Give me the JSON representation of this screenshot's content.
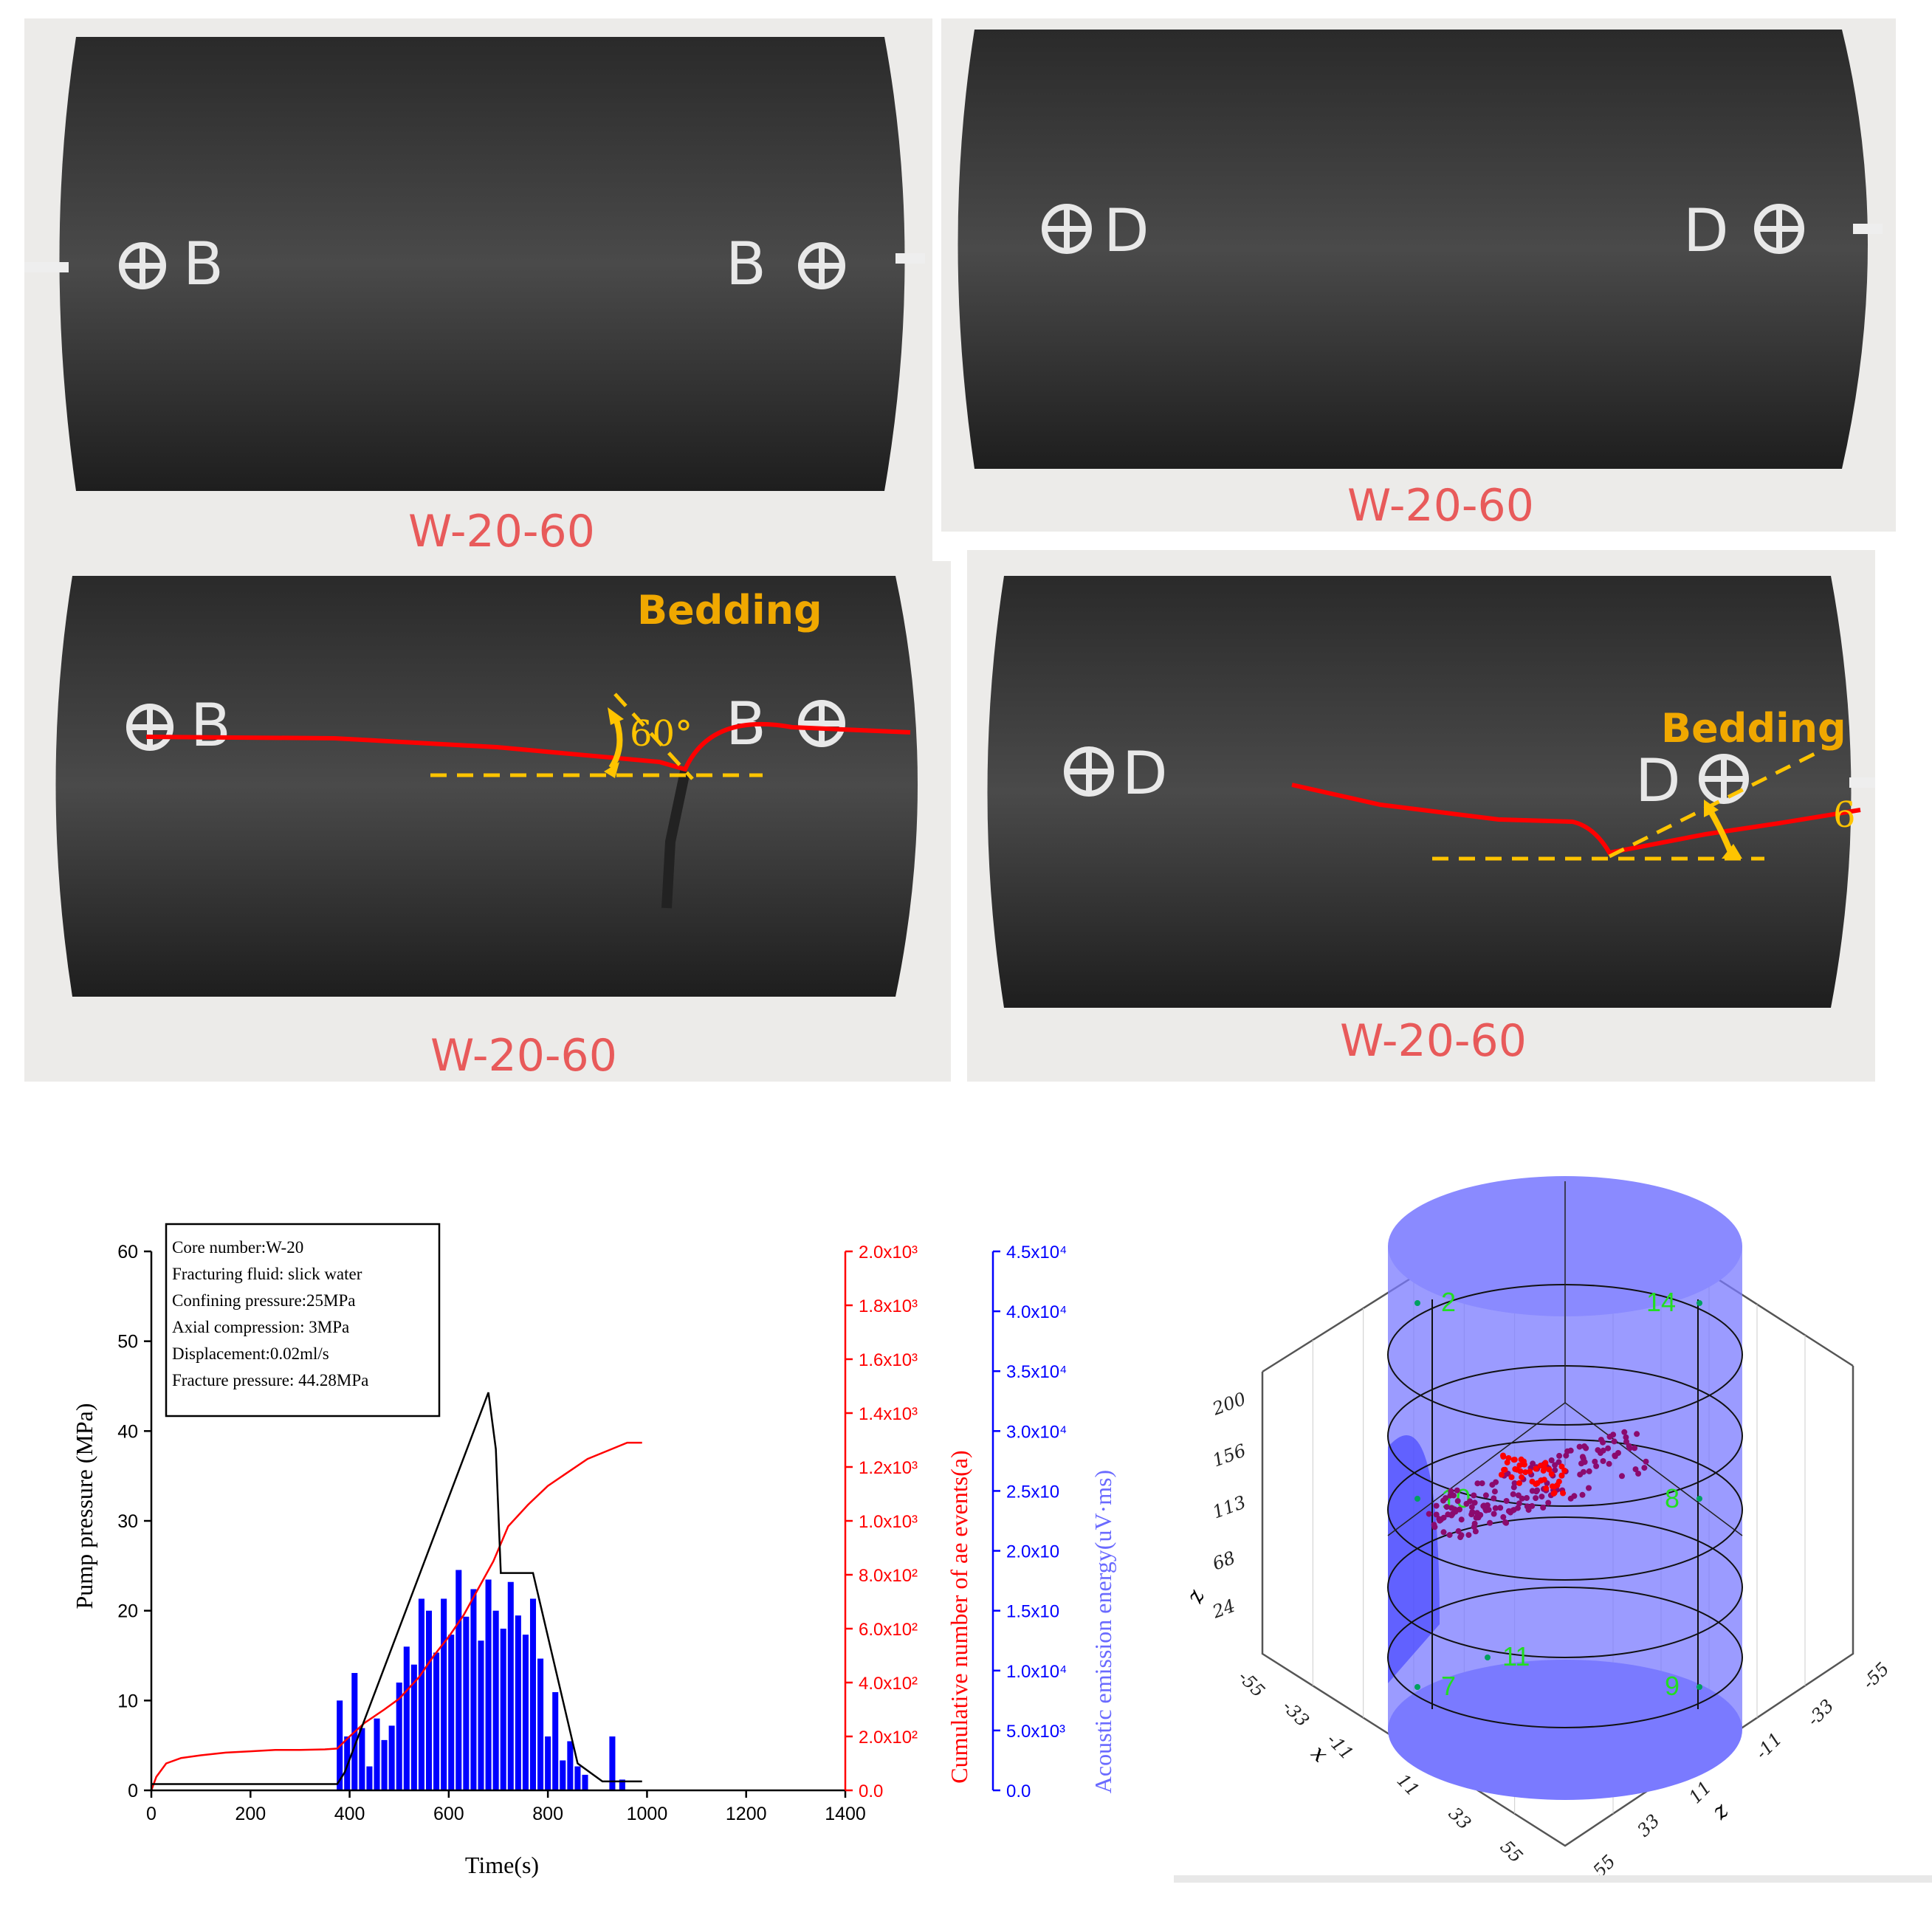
{
  "photos": {
    "sample_label": "W-20-60",
    "mark_b": "B",
    "mark_d": "D",
    "bedding_label": "Bedding",
    "angle_label_1": "60°",
    "angle_label_2": "6"
  },
  "chart_data": [
    {
      "type": "line",
      "xlabel": "Time(s)",
      "ylabel": "Pump pressure (MPa)",
      "xlim": [
        0,
        1400
      ],
      "ylim": [
        0,
        60
      ],
      "x_ticks": [
        "0",
        "200",
        "400",
        "600",
        "800",
        "1000",
        "1200",
        "1400"
      ],
      "y_ticks": [
        "0",
        "10",
        "20",
        "30",
        "40",
        "50",
        "60"
      ],
      "right_axis_1": {
        "label": "Cumulative number of ae events(a)",
        "color": "#ff0000",
        "lim": [
          0,
          2000
        ],
        "ticks": [
          "0.0",
          "2.0x10²",
          "4.0x10²",
          "6.0x10²",
          "8.0x10²",
          "1.0x10³",
          "1.2x10³",
          "1.4x10³",
          "1.6x10³",
          "1.8x10³",
          "2.0x10³"
        ]
      },
      "right_axis_2": {
        "label": "Acoustic emission energy(uV·ms)",
        "color": "#0000ff",
        "lim": [
          0,
          45000
        ],
        "ticks": [
          "0.0",
          "5.0x10³",
          "1.0x10⁴",
          "1.5x10",
          "2.0x10",
          "2.5x10",
          "3.0x10⁴",
          "3.5x10⁴",
          "4.0x10⁴",
          "4.5x10⁴"
        ]
      },
      "legend_box": [
        "Core number:W-20",
        "Fracturing fluid: slick water",
        "Confining pressure:25MPa",
        "Axial compression: 3MPa",
        "Displacement:0.02ml/s",
        "Fracture pressure: 44.28MPa"
      ],
      "series": [
        {
          "color": "#000000",
          "x": [
            0,
            375,
            390,
            680,
            695,
            705,
            770,
            860,
            910,
            990
          ],
          "y": [
            0.7,
            0.7,
            2,
            44.3,
            38,
            24.2,
            24.2,
            3,
            1,
            1
          ]
        },
        {
          "color": "#ff0000",
          "x": [
            0,
            10,
            30,
            60,
            100,
            150,
            200,
            250,
            300,
            350,
            375,
            400,
            430,
            470,
            500,
            540,
            570,
            600,
            630,
            660,
            690,
            720,
            760,
            800,
            840,
            880,
            920,
            960,
            990
          ],
          "y": [
            0,
            50,
            100,
            120,
            130,
            140,
            145,
            150,
            150,
            152,
            155,
            200,
            250,
            300,
            340,
            420,
            500,
            570,
            650,
            750,
            850,
            980,
            1060,
            1130,
            1180,
            1230,
            1260,
            1290,
            1290
          ]
        },
        {
          "color": "#0000ff",
          "type": "bar",
          "x": [
            380,
            395,
            410,
            425,
            440,
            455,
            470,
            485,
            500,
            515,
            530,
            545,
            560,
            575,
            590,
            605,
            620,
            635,
            650,
            665,
            680,
            695,
            710,
            725,
            740,
            755,
            770,
            785,
            800,
            815,
            830,
            845,
            860,
            875,
            930,
            950
          ],
          "y": [
            7500,
            4500,
            9800,
            5200,
            2000,
            6000,
            4200,
            5400,
            9000,
            12000,
            10500,
            16000,
            15000,
            11500,
            16000,
            13000,
            18400,
            14500,
            16800,
            12500,
            17600,
            15000,
            13500,
            17400,
            14600,
            13000,
            16000,
            11000,
            4500,
            8200,
            2500,
            4100,
            2000,
            1300,
            4500,
            900
          ]
        }
      ]
    },
    {
      "type": "scatter",
      "xlabel": "x",
      "ylabel": "z",
      "zlabel": "z",
      "z_ticks": [
        "24",
        "68",
        "113",
        "156",
        "200"
      ],
      "x_ticks": [
        "-55",
        "-33",
        "-11",
        "11",
        "33",
        "55"
      ],
      "y_ticks": [
        "55",
        "33",
        "11",
        "-11",
        "-33",
        "-55"
      ],
      "sensor_labels": [
        "2",
        "14",
        "10",
        "8",
        "11",
        "7",
        "9"
      ],
      "cylinder_color": "#7a7aff",
      "events_red_color": "#ff0000",
      "events_purple_color": "#8b0a6e"
    }
  ]
}
